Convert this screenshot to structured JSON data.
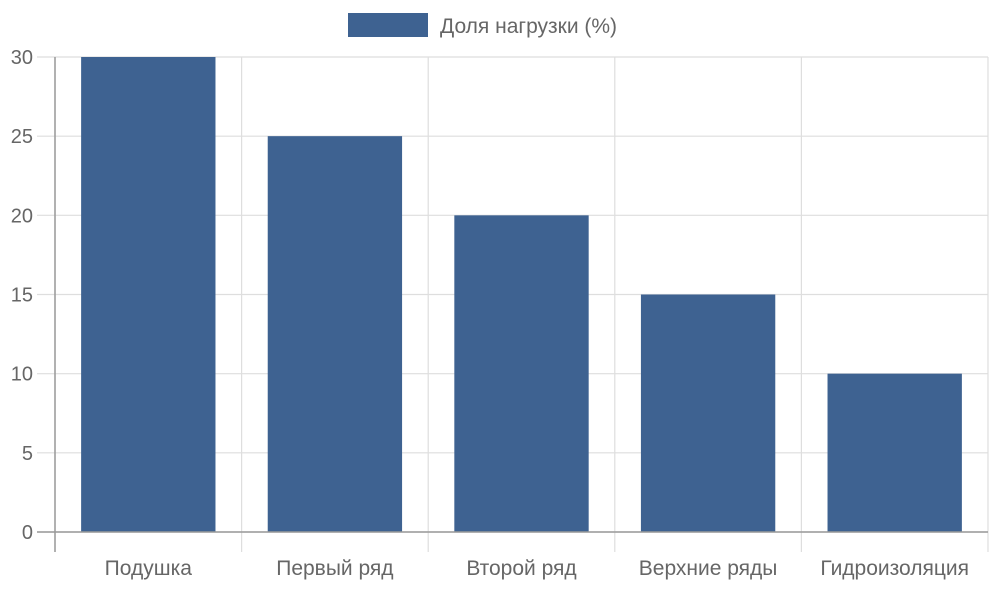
{
  "chart_data": {
    "type": "bar",
    "categories": [
      "Подушка",
      "Первый ряд",
      "Второй ряд",
      "Верхние ряды",
      "Гидроизоляция"
    ],
    "series": [
      {
        "name": "Доля нагрузки (%)",
        "values": [
          30,
          25,
          20,
          15,
          10
        ],
        "color": "#3e6291"
      }
    ],
    "ylim": [
      0,
      30
    ],
    "yticks": [
      0,
      5,
      10,
      15,
      20,
      25,
      30
    ],
    "grid": true,
    "legend_position": "top-center"
  },
  "colors": {
    "bar": "#3e6291",
    "grid": "#dedede",
    "axis": "#999999",
    "tick_text": "#666666",
    "legend_text": "#666666"
  }
}
